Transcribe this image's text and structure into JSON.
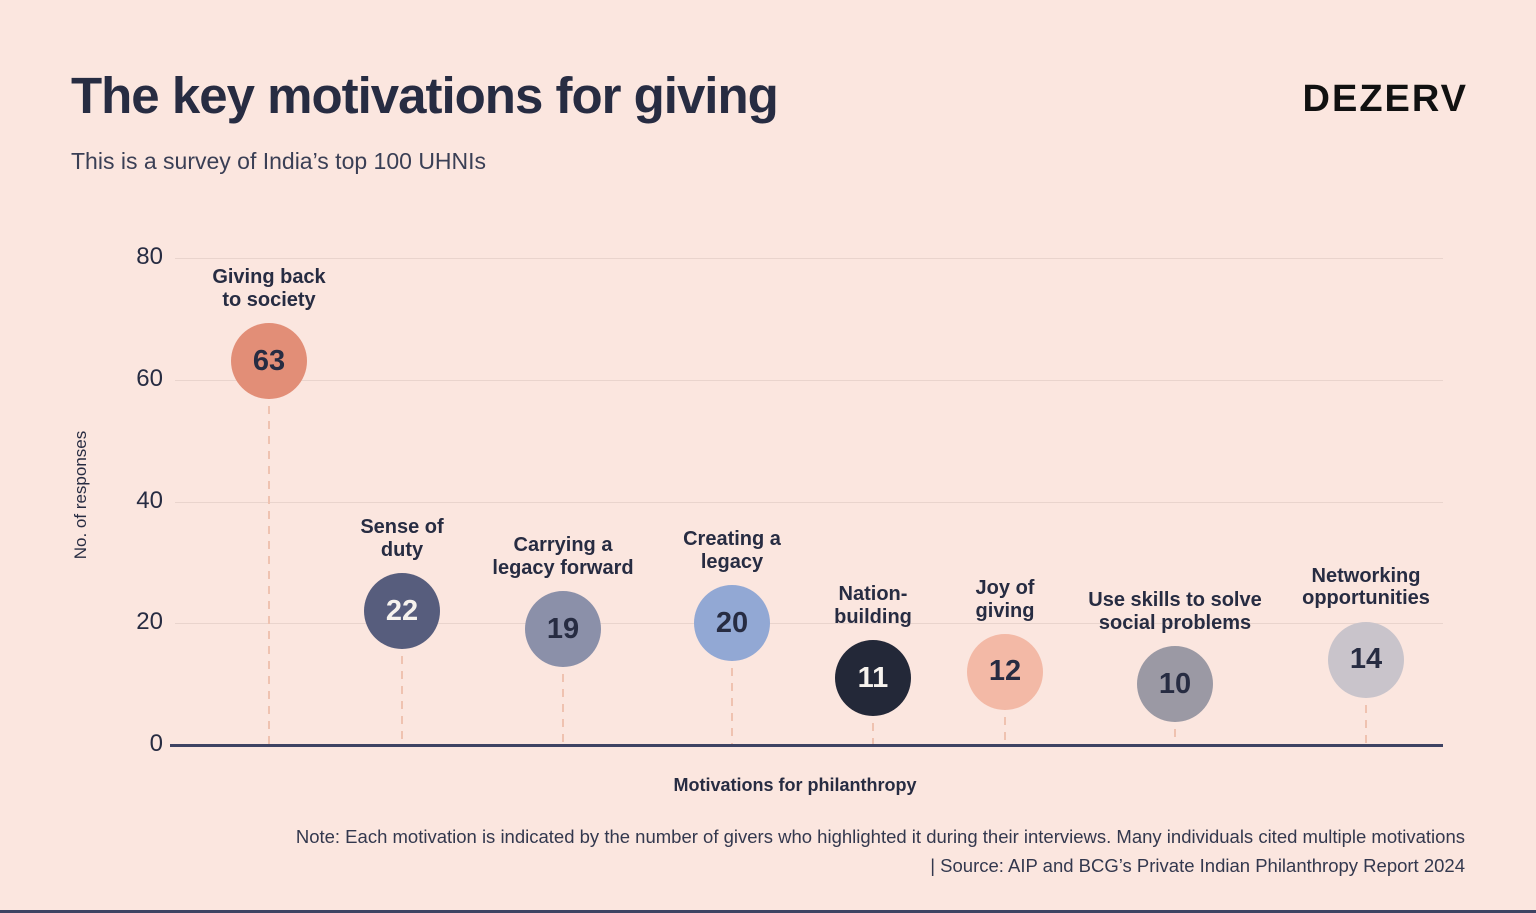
{
  "palette": {
    "bg": "#FBE6DF",
    "grid": "#E9D4CD",
    "stem": "#EFC2B0",
    "baseline": "#3E4363",
    "ink": "#272C42",
    "ink-soft": "#3A3F55",
    "logo": "#111111",
    "note": "#33384E"
  },
  "header": {
    "title": "The key motivations for giving",
    "subtitle": "This is a survey of India’s top 100 UHNIs",
    "logo": "DEZERV"
  },
  "chart_data": {
    "type": "bubble",
    "title": "The key motivations for giving",
    "subtitle": "This is a survey of India’s top 100 UHNIs",
    "xlabel": "Motivations for philanthropy",
    "ylabel": "No. of responses",
    "ylim": [
      0,
      80
    ],
    "yticks": [
      0,
      20,
      40,
      60,
      80
    ],
    "grid": "horizontal",
    "legend": "none",
    "categories": [
      "Giving back to society",
      "Sense of duty",
      "Carrying a legacy forward",
      "Creating a legacy",
      "Nation-building",
      "Joy of giving",
      "Use skills to solve social problems",
      "Networking opportunities"
    ],
    "values": [
      63,
      22,
      19,
      20,
      11,
      12,
      10,
      14
    ],
    "points": [
      {
        "label": "Giving back\nto society",
        "value": 63,
        "bubble_color": "#E28E77",
        "value_color": "#272C42"
      },
      {
        "label": "Sense of\nduty",
        "value": 22,
        "bubble_color": "#575D7D",
        "value_color": "#F7F3EE"
      },
      {
        "label": "Carrying a\nlegacy forward",
        "value": 19,
        "bubble_color": "#8B90A9",
        "value_color": "#272C42"
      },
      {
        "label": "Creating a\nlegacy",
        "value": 20,
        "bubble_color": "#92A8D4",
        "value_color": "#272C42"
      },
      {
        "label": "Nation-\nbuilding",
        "value": 11,
        "bubble_color": "#232838",
        "value_color": "#F7F3EE"
      },
      {
        "label": "Joy of\ngiving",
        "value": 12,
        "bubble_color": "#F3B9A6",
        "value_color": "#272C42"
      },
      {
        "label": "Use skills to solve\nsocial problems",
        "value": 10,
        "bubble_color": "#9B99A4",
        "value_color": "#272C42"
      },
      {
        "label": "Networking\nopportunities",
        "value": 14,
        "bubble_color": "#C9C4CB",
        "value_color": "#272C42"
      }
    ]
  },
  "footer": {
    "note_line1": "Note: Each motivation is indicated by the number of givers who highlighted it during their interviews. Many individuals cited multiple motivations",
    "note_line2": "| Source: AIP and BCG’s Private Indian Philanthropy Report 2024"
  }
}
